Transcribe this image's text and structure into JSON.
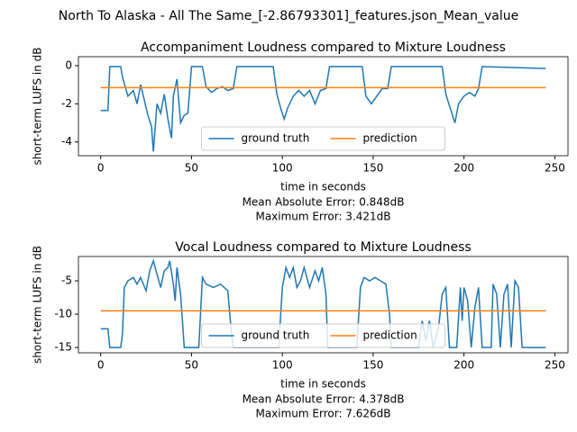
{
  "title": "North To Alaska - All The Same_[-2.86793301]_features.json_Mean_value",
  "chart_data": [
    {
      "type": "line",
      "title": "Accompaniment Loudness compared to Mixture Loudness",
      "xlabel": "time in seconds",
      "ylabel": "short-term LUFS in dB",
      "annotations": [
        "Mean Absolute Error: 0.848dB",
        "Maximum Error: 3.421dB"
      ],
      "xlim": [
        -12.25,
        257.25
      ],
      "xticks": [
        0,
        50,
        100,
        150,
        200,
        250
      ],
      "ylim": [
        -4.72,
        0.47
      ],
      "yticks": [
        -4,
        -2,
        0
      ],
      "legend": "lower center",
      "series": [
        {
          "name": "ground truth",
          "color": "#1f77b4",
          "x": [
            0,
            4,
            5,
            11,
            12,
            15,
            18,
            20,
            22,
            24,
            26,
            28,
            29,
            31,
            33,
            35,
            37,
            39,
            40,
            42,
            44,
            46,
            48,
            50,
            56,
            58,
            61,
            64,
            67,
            70,
            73,
            75,
            95,
            97,
            99,
            101,
            103,
            106,
            109,
            112,
            115,
            118,
            121,
            124,
            126,
            144,
            146,
            149,
            152,
            155,
            158,
            160,
            188,
            190,
            193,
            195,
            197,
            200,
            203,
            206,
            208,
            210,
            245
          ],
          "values": [
            -2.35,
            -2.35,
            -0.05,
            -0.05,
            -0.6,
            -1.6,
            -1.3,
            -2.0,
            -1.0,
            -1.8,
            -2.6,
            -3.2,
            -4.5,
            -2.0,
            -2.5,
            -1.5,
            -2.8,
            -3.8,
            -1.6,
            -0.7,
            -3.0,
            -2.6,
            -2.5,
            -0.05,
            -0.05,
            -1.1,
            -1.4,
            -1.2,
            -1.1,
            -1.3,
            -1.2,
            -0.05,
            -0.05,
            -1.5,
            -2.2,
            -2.8,
            -2.2,
            -1.6,
            -1.3,
            -1.6,
            -1.3,
            -2.0,
            -1.3,
            -1.2,
            -0.05,
            -0.05,
            -1.6,
            -2.0,
            -1.6,
            -1.2,
            -1.2,
            -0.05,
            -0.05,
            -1.5,
            -2.4,
            -3.0,
            -2.0,
            -1.6,
            -1.4,
            -1.6,
            -1.2,
            -0.05,
            -0.15
          ]
        },
        {
          "name": "prediction",
          "color": "#ff7f0e",
          "x": [
            0,
            245
          ],
          "values": [
            -1.15,
            -1.15
          ]
        }
      ]
    },
    {
      "type": "line",
      "title": "Vocal Loudness compared to Mixture Loudness",
      "xlabel": "time in seconds",
      "ylabel": "short-term LUFS in dB",
      "annotations": [
        "Mean Absolute Error: 4.378dB",
        "Maximum Error: 7.626dB"
      ],
      "xlim": [
        -12.25,
        257.25
      ],
      "xticks": [
        0,
        50,
        100,
        150,
        200,
        250
      ],
      "ylim": [
        -15.8,
        -1.35
      ],
      "yticks": [
        -15,
        -10,
        -5
      ],
      "legend": "lower center",
      "series": [
        {
          "name": "ground truth",
          "color": "#1f77b4",
          "x": [
            0,
            4,
            5,
            11,
            12,
            13,
            15,
            18,
            20,
            22,
            25,
            27,
            29,
            31,
            33,
            35,
            37,
            38,
            40,
            41,
            42,
            44,
            46,
            54,
            56,
            58,
            62,
            66,
            70,
            72,
            73,
            98,
            100,
            102,
            104,
            106,
            108,
            110,
            112,
            115,
            118,
            120,
            122,
            124,
            125,
            141,
            143,
            145,
            148,
            151,
            154,
            157,
            159,
            160,
            175,
            177,
            179,
            181,
            183,
            186,
            188,
            190,
            192,
            196,
            198,
            199,
            200,
            202,
            204,
            206,
            208,
            210,
            215,
            216,
            218,
            220,
            222,
            224,
            226,
            228,
            230,
            232,
            245
          ],
          "values": [
            -12.2,
            -12.2,
            -15,
            -15,
            -13,
            -6,
            -5,
            -4.5,
            -5.5,
            -4.5,
            -6.5,
            -3.5,
            -2,
            -4,
            -6,
            -3.5,
            -3,
            -2,
            -5.5,
            -8,
            -3,
            -7,
            -15,
            -15,
            -4.5,
            -5.5,
            -6,
            -5.5,
            -6.5,
            -13,
            -15,
            -15,
            -6,
            -3,
            -4.5,
            -3,
            -6,
            -5,
            -3,
            -6,
            -3.5,
            -5,
            -3,
            -7,
            -15,
            -15,
            -6,
            -4.5,
            -5,
            -4.5,
            -5,
            -5.5,
            -10,
            -15,
            -15,
            -11,
            -14,
            -11,
            -15,
            -12,
            -7,
            -6,
            -15,
            -15,
            -6,
            -11,
            -6,
            -8,
            -15,
            -9,
            -6,
            -15,
            -15,
            -5.5,
            -7,
            -15,
            -7,
            -5.5,
            -15,
            -5,
            -6,
            -15,
            -15
          ]
        },
        {
          "name": "prediction",
          "color": "#ff7f0e",
          "x": [
            0,
            245
          ],
          "values": [
            -9.5,
            -9.5
          ]
        }
      ]
    }
  ]
}
